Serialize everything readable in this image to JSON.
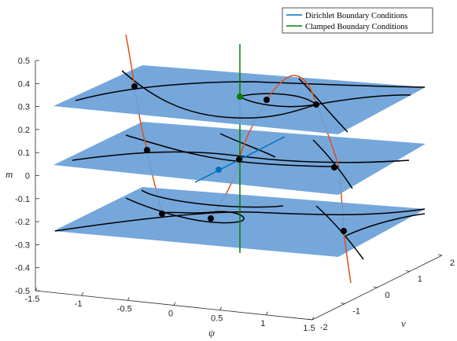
{
  "chart_data": {
    "type": "line",
    "title": "",
    "xlabel": "ψ",
    "ylabel": "v",
    "zlabel": "m",
    "xlim": [
      -1.5,
      1.5
    ],
    "ylim": [
      -2,
      2
    ],
    "zlim": [
      -0.5,
      0.5
    ],
    "x_ticks": [
      "-1.5",
      "-1",
      "-0.5",
      "0",
      "0.5",
      "1",
      "1.5"
    ],
    "y_ticks": [
      "-2",
      "-1",
      "0",
      "1",
      "2"
    ],
    "z_ticks": [
      "-0.5",
      "-0.4",
      "-0.3",
      "-0.2",
      "-0.1",
      "0",
      "0.1",
      "0.2",
      "0.3",
      "0.4",
      "0.5"
    ],
    "planes_at_m": [
      0.33,
      0,
      -0.2
    ],
    "legend": {
      "placement": "top-right",
      "entries": [
        {
          "label": "Dirichlet Boundary Conditions",
          "color": "#0072bd"
        },
        {
          "label": "Clamped Boundary Conditions",
          "color": "#008000"
        }
      ]
    },
    "colors": {
      "plane": "#6a9fd8",
      "curves": "#000000",
      "connections": "#d95319",
      "dirichlet": "#0072bd",
      "clamped": "#008000"
    }
  }
}
